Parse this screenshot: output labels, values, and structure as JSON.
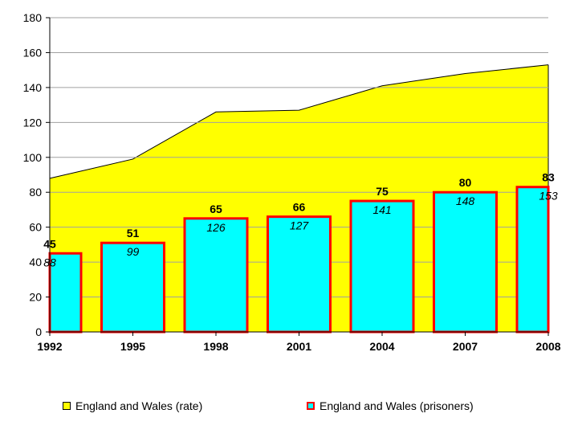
{
  "chart_data": {
    "type": "area+bar",
    "categories": [
      "1992",
      "1995",
      "1998",
      "2001",
      "2004",
      "2007",
      "2008"
    ],
    "series": [
      {
        "name": "England and Wales (rate)",
        "type": "area",
        "values": [
          88,
          99,
          126,
          127,
          141,
          148,
          153
        ],
        "color": "#ffff00",
        "stroke": "#000000"
      },
      {
        "name": "England and Wales (prisoners)",
        "type": "bar",
        "values": [
          45,
          51,
          65,
          66,
          75,
          80,
          83
        ],
        "color": "#00ffff",
        "stroke": "#ff0000"
      }
    ],
    "ylim": [
      0,
      180
    ],
    "yticks": [
      0,
      20,
      40,
      60,
      80,
      100,
      120,
      140,
      160,
      180
    ],
    "grid": true,
    "legend_position": "bottom"
  }
}
